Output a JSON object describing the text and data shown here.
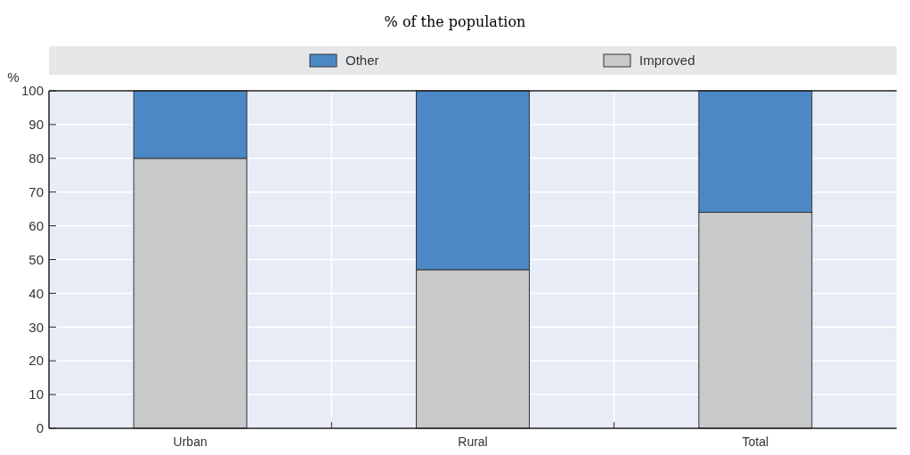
{
  "chart_data": {
    "type": "bar",
    "subtitle": "% of the population",
    "ylabel": "%",
    "categories": [
      "Urban",
      "Rural",
      "Total"
    ],
    "stacked": true,
    "series": [
      {
        "name": "Improved",
        "color": "#c8c9cb",
        "values": [
          80,
          47,
          64
        ]
      },
      {
        "name": "Other",
        "color": "#4d88c6",
        "values": [
          20,
          53,
          36
        ]
      }
    ],
    "ylim": [
      0,
      100
    ],
    "yticks": [
      0,
      10,
      20,
      30,
      40,
      50,
      60,
      70,
      80,
      90,
      100
    ],
    "grid": true,
    "legend": "top"
  }
}
